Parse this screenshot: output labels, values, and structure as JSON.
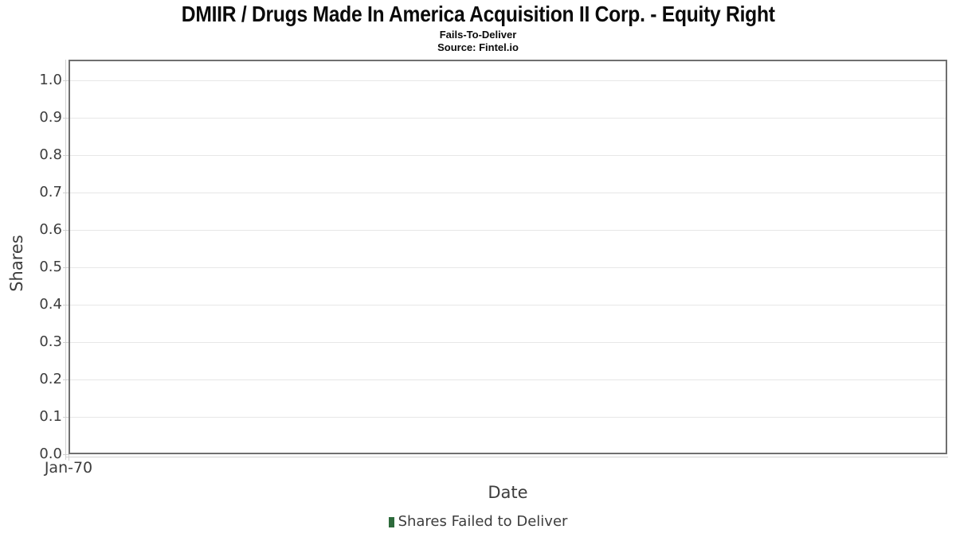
{
  "chart_data": {
    "type": "bar",
    "title": "DMIIR / Drugs Made In America Acquisition II Corp. - Equity Right",
    "subtitle": "Fails-To-Deliver",
    "source": "Source: Fintel.io",
    "xlabel": "Date",
    "ylabel": "Shares",
    "x_tick_labels": [
      "Jan-70"
    ],
    "y_ticks": [
      0.0,
      0.1,
      0.2,
      0.3,
      0.4,
      0.5,
      0.6,
      0.7,
      0.8,
      0.9,
      1.0
    ],
    "ylim": [
      0.0,
      1.055
    ],
    "grid": true,
    "legend_position": "bottom",
    "series": [
      {
        "name": "Shares Failed to Deliver",
        "type": "bar",
        "color": "#2d6a3b",
        "x": [],
        "values": []
      }
    ]
  },
  "colors": {
    "legend_marker": "#2d6a3b",
    "plot_border": "#6f6f6f",
    "gridline": "#e7e7e7",
    "axis_line": "#d2d2d2",
    "axis_text": "#3d3d3d",
    "title_text": "#0b0b0b"
  }
}
